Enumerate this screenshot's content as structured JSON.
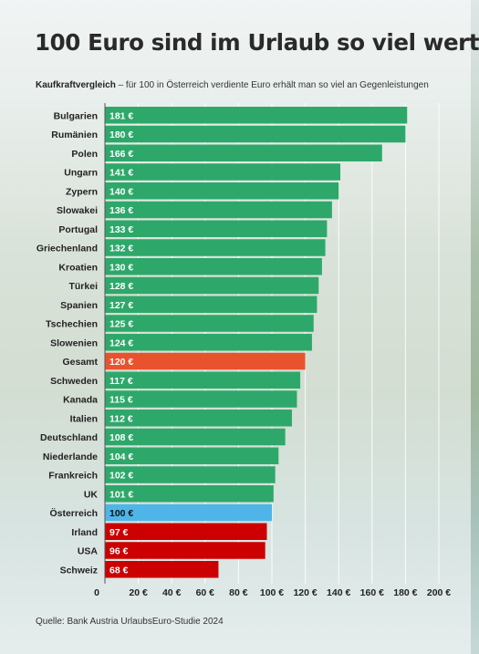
{
  "header": {
    "title": "100 Euro sind im Urlaub so viel wert",
    "subtitle_bold": "Kaufkraftvergleich",
    "subtitle_rest": " – für 100 in Österreich verdiente Euro erhält man so viel an Gegenleistungen"
  },
  "footer": {
    "source": "Quelle: Bank Austria UrlaubsEuro-Studie 2024"
  },
  "colors": {
    "default": "#2ea86a",
    "gesamt": "#e8532e",
    "oesterreich": "#4fb5e8",
    "below": "#cc0000",
    "label_on_default": "#ffffff",
    "label_on_oesterreich": "#111111"
  },
  "chart_data": {
    "type": "bar",
    "orientation": "horizontal",
    "categories": [
      "Bulgarien",
      "Rumänien",
      "Polen",
      "Ungarn",
      "Zypern",
      "Slowakei",
      "Portugal",
      "Griechenland",
      "Kroatien",
      "Türkei",
      "Spanien",
      "Tschechien",
      "Slowenien",
      "Gesamt",
      "Schweden",
      "Kanada",
      "Italien",
      "Deutschland",
      "Niederlande",
      "Frankreich",
      "UK",
      "Österreich",
      "Irland",
      "USA",
      "Schweiz"
    ],
    "values": [
      181,
      180,
      166,
      141,
      140,
      136,
      133,
      132,
      130,
      128,
      127,
      125,
      124,
      120,
      117,
      115,
      112,
      108,
      104,
      102,
      101,
      100,
      97,
      96,
      68
    ],
    "value_labels": [
      "181 €",
      "180 €",
      "166 €",
      "141 €",
      "140 €",
      "136 €",
      "133 €",
      "132 €",
      "130 €",
      "128 €",
      "127 €",
      "125 €",
      "124 €",
      "120 €",
      "117 €",
      "115 €",
      "112 €",
      "108 €",
      "104 €",
      "102 €",
      "101 €",
      "100 €",
      "97 €",
      "96 €",
      "68 €"
    ],
    "highlight": {
      "Gesamt": "gesamt",
      "Österreich": "oesterreich",
      "Irland": "below",
      "USA": "below",
      "Schweiz": "below"
    },
    "xlim": [
      0,
      210
    ],
    "xticks": [
      0,
      20,
      40,
      60,
      80,
      100,
      120,
      140,
      160,
      180,
      200
    ],
    "xtick_labels": [
      "0",
      "20 €",
      "40 €",
      "60 €",
      "80 €",
      "100 €",
      "120 €",
      "140 €",
      "160 €",
      "180 €",
      "200 €"
    ],
    "grid": true,
    "legend": "none",
    "title": "100 Euro sind im Urlaub so viel wert",
    "xlabel": "",
    "ylabel": ""
  }
}
